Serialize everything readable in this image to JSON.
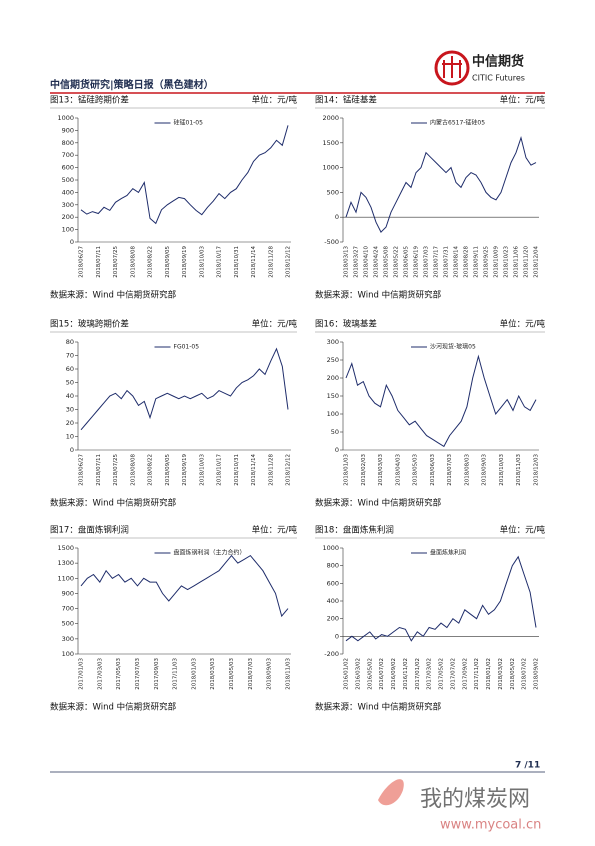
{
  "header": {
    "logo_name": "中信期货",
    "logo_en": "CITIC Futures",
    "title": "中信期货研究|策略日报（黑色建材）"
  },
  "chart_data": [
    {
      "type": "line",
      "title": "图13：锰硅跨期价差",
      "unit": "单位：元/吨",
      "source": "数据来源：Wind  中信期货研究部",
      "categories": [
        "2018/06/27",
        null,
        null,
        "2018/07/11",
        null,
        null,
        "2018/07/25",
        null,
        null,
        "2018/08/08",
        null,
        null,
        "2018/08/22",
        null,
        null,
        "2018/09/05",
        null,
        null,
        "2018/09/19",
        null,
        null,
        "2018/10/03",
        null,
        null,
        "2018/10/17",
        null,
        null,
        "2018/10/31",
        null,
        null,
        "2018/11/14",
        null,
        null,
        "2018/11/28",
        null,
        null,
        "2018/12/12"
      ],
      "series": [
        {
          "name": "硅锰01-05",
          "color": "#1f2d6b",
          "values": [
            260,
            225,
            245,
            230,
            280,
            255,
            320,
            350,
            375,
            430,
            400,
            480,
            190,
            150,
            260,
            300,
            330,
            360,
            350,
            300,
            255,
            220,
            280,
            330,
            390,
            350,
            400,
            430,
            500,
            560,
            650,
            700,
            720,
            760,
            820,
            780,
            940
          ]
        }
      ],
      "ylim": [
        0,
        1000
      ],
      "yticks": [
        0,
        100,
        200,
        300,
        400,
        500,
        600,
        700,
        800,
        900,
        1000
      ]
    },
    {
      "type": "line",
      "title": "图14：锰硅基差",
      "unit": "单位：元/吨",
      "source": "数据来源：Wind  中信期货研究部",
      "categories": [
        "2018/03/13",
        null,
        "2018/03/27",
        null,
        "2018/04/10",
        null,
        "2018/04/24",
        null,
        "2018/05/08",
        null,
        "2018/05/22",
        null,
        "2018/06/05",
        null,
        "2018/06/19",
        null,
        "2018/07/03",
        null,
        "2018/07/17",
        null,
        "2018/07/31",
        null,
        "2018/08/14",
        null,
        "2018/08/28",
        null,
        "2018/09/11",
        null,
        "2018/09/25",
        null,
        "2018/10/09",
        null,
        "2018/10/23",
        null,
        "2018/11/06",
        null,
        "2018/11/20",
        null,
        "2018/12/04"
      ],
      "series": [
        {
          "name": "内蒙古6517-锰硅05",
          "color": "#1f2d6b",
          "values": [
            0,
            300,
            100,
            500,
            400,
            200,
            -100,
            -300,
            -200,
            100,
            300,
            500,
            700,
            600,
            900,
            1000,
            1300,
            1200,
            1100,
            1000,
            900,
            1000,
            700,
            600,
            800,
            900,
            850,
            700,
            500,
            400,
            350,
            500,
            800,
            1100,
            1300,
            1600,
            1200,
            1050,
            1100
          ]
        }
      ],
      "ylim": [
        -500,
        2000
      ],
      "yticks": [
        -500,
        0,
        500,
        1000,
        1500,
        2000
      ]
    },
    {
      "type": "line",
      "title": "图15：玻璃跨期价差",
      "unit": "单位：元/吨",
      "source": "数据来源：Wind  中信期货研究部",
      "categories": [
        "2018/06/27",
        null,
        null,
        "2018/07/11",
        null,
        null,
        "2018/07/25",
        null,
        null,
        "2018/08/08",
        null,
        null,
        "2018/08/22",
        null,
        null,
        "2018/09/05",
        null,
        null,
        "2018/09/19",
        null,
        null,
        "2018/10/03",
        null,
        null,
        "2018/10/17",
        null,
        null,
        "2018/10/31",
        null,
        null,
        "2018/11/14",
        null,
        null,
        "2018/11/28",
        null,
        null,
        "2018/12/12"
      ],
      "series": [
        {
          "name": "FG01-05",
          "color": "#1f2d6b",
          "values": [
            15,
            20,
            25,
            30,
            35,
            40,
            42,
            38,
            44,
            40,
            33,
            36,
            24,
            38,
            40,
            42,
            40,
            38,
            40,
            38,
            40,
            42,
            38,
            40,
            44,
            42,
            40,
            46,
            50,
            52,
            55,
            60,
            56,
            66,
            75,
            62,
            30
          ]
        }
      ],
      "ylim": [
        0,
        80
      ],
      "yticks": [
        0,
        10,
        20,
        30,
        40,
        50,
        60,
        70,
        80
      ]
    },
    {
      "type": "line",
      "title": "图16：玻璃基差",
      "unit": "单位：元/吨",
      "source": "数据来源：Wind  中信期货研究部",
      "categories": [
        "2018/01/03",
        null,
        null,
        "2018/02/03",
        null,
        null,
        "2018/03/03",
        null,
        null,
        "2018/04/03",
        null,
        null,
        "2018/05/03",
        null,
        null,
        "2018/06/03",
        null,
        null,
        "2018/07/03",
        null,
        null,
        "2018/08/03",
        null,
        null,
        "2018/09/03",
        null,
        null,
        "2018/10/03",
        null,
        null,
        "2018/11/03",
        null,
        null,
        "2018/12/03"
      ],
      "series": [
        {
          "name": "沙河现货-玻璃05",
          "color": "#1f2d6b",
          "values": [
            200,
            240,
            180,
            190,
            150,
            130,
            120,
            180,
            150,
            110,
            90,
            70,
            80,
            60,
            40,
            30,
            20,
            10,
            40,
            60,
            80,
            120,
            200,
            260,
            200,
            150,
            100,
            120,
            140,
            110,
            150,
            120,
            110,
            140
          ]
        }
      ],
      "ylim": [
        0,
        300
      ],
      "yticks": [
        0,
        50,
        100,
        150,
        200,
        250,
        300
      ]
    },
    {
      "type": "line",
      "title": "图17：盘面炼钢利润",
      "unit": "单位：元/吨",
      "source": "数据来源：Wind  中信期货研究部",
      "categories": [
        "2017/01/03",
        null,
        null,
        "2017/03/03",
        null,
        null,
        "2017/05/03",
        null,
        null,
        "2017/07/03",
        null,
        null,
        "2017/09/03",
        null,
        null,
        "2017/11/03",
        null,
        null,
        "2018/01/03",
        null,
        null,
        "2018/03/03",
        null,
        null,
        "2018/05/03",
        null,
        null,
        "2018/07/03",
        null,
        null,
        "2018/09/03",
        null,
        null,
        "2018/11/03"
      ],
      "series": [
        {
          "name": "盘面炼钢利润（主力合约）",
          "color": "#1f2d6b",
          "values": [
            1000,
            1100,
            1150,
            1050,
            1200,
            1100,
            1150,
            1050,
            1100,
            1000,
            1100,
            1050,
            1050,
            900,
            800,
            900,
            1000,
            950,
            1000,
            1050,
            1100,
            1150,
            1200,
            1300,
            1400,
            1300,
            1350,
            1400,
            1300,
            1200,
            1050,
            900,
            600,
            700
          ]
        }
      ],
      "ylim": [
        100,
        1500
      ],
      "yticks": [
        100,
        300,
        500,
        700,
        900,
        1100,
        1300,
        1500
      ]
    },
    {
      "type": "line",
      "title": "图18：盘面炼焦利润",
      "unit": "单位：元/吨",
      "source": "数据来源：Wind  中信期货研究部",
      "categories": [
        "2016/01/02",
        null,
        "2016/03/02",
        null,
        "2016/05/02",
        null,
        "2016/07/02",
        null,
        "2016/09/02",
        null,
        "2016/11/02",
        null,
        "2017/01/02",
        null,
        "2017/03/02",
        null,
        "2017/05/02",
        null,
        "2017/07/02",
        null,
        "2017/09/02",
        null,
        "2017/11/02",
        null,
        "2018/01/02",
        null,
        "2018/03/02",
        null,
        "2018/05/02",
        null,
        "2018/07/02",
        null,
        "2018/09/02"
      ],
      "series": [
        {
          "name": "盘面炼焦利润",
          "color": "#1f2d6b",
          "values": [
            -50,
            0,
            -50,
            0,
            50,
            -30,
            20,
            0,
            50,
            100,
            80,
            -50,
            50,
            0,
            100,
            80,
            150,
            100,
            200,
            150,
            300,
            250,
            200,
            350,
            250,
            300,
            400,
            600,
            800,
            900,
            700,
            500,
            100
          ]
        }
      ],
      "ylim": [
        -200,
        1000
      ],
      "yticks": [
        -200,
        0,
        200,
        400,
        600,
        800,
        1000
      ]
    }
  ],
  "footer": {
    "page": "7 /11",
    "watermark": "我的煤炭网",
    "watermark_url": "www.mycoal.cn"
  }
}
